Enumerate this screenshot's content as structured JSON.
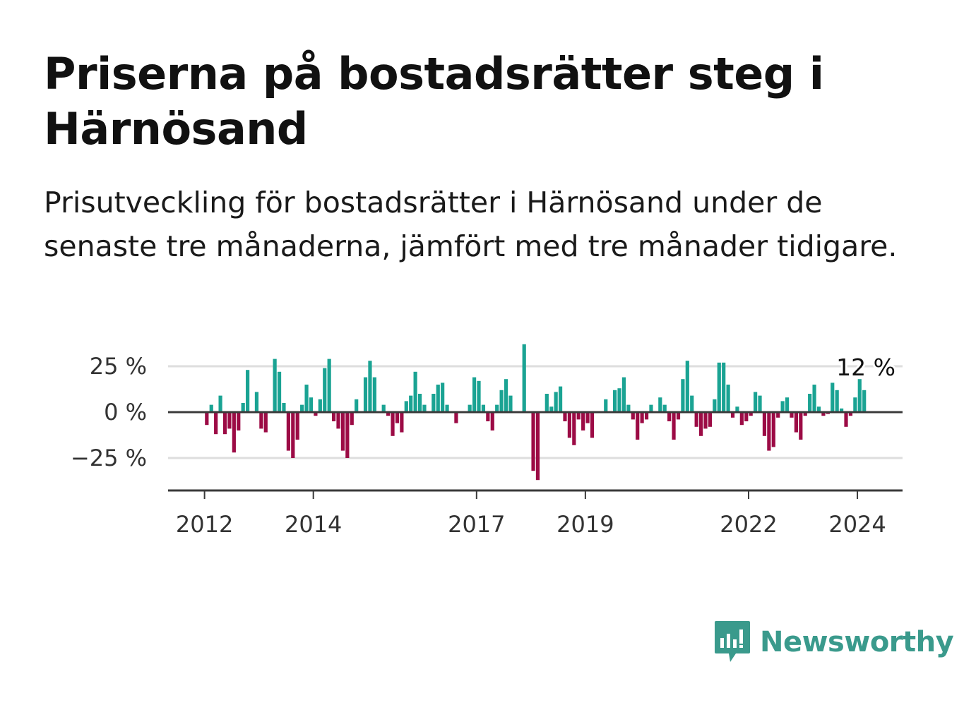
{
  "title": "Priserna på bostadsrätter steg i Härnösand",
  "subtitle": "Prisutveckling för bostadsrätter i Härnösand under de senaste tre månaderna, jämfört med tre månader tidigare.",
  "brand": {
    "name": "Newsworthy",
    "icon": "newsworthy-bar-chart-logo-icon"
  },
  "colors": {
    "positive": "#1aa393",
    "negative": "#9c0b45",
    "axis": "#3a3a3a",
    "grid": "#dedede",
    "brand": "#3a9a8c"
  },
  "chart_data": {
    "type": "bar",
    "title": "",
    "xlabel": "",
    "ylabel": "",
    "ylim": [
      -42,
      38
    ],
    "y_ticks": [
      {
        "value": 25,
        "label": "25 %"
      },
      {
        "value": 0,
        "label": "0 %"
      },
      {
        "value": -25,
        "label": "−25 %"
      }
    ],
    "x_ticks": [
      {
        "value": 2012.0,
        "label": "2012"
      },
      {
        "value": 2014.0,
        "label": "2014"
      },
      {
        "value": 2017.0,
        "label": "2017"
      },
      {
        "value": 2019.0,
        "label": "2019"
      },
      {
        "value": 2022.0,
        "label": "2022"
      },
      {
        "value": 2024.0,
        "label": "2024"
      }
    ],
    "x_range": [
      2011.33,
      2024.83
    ],
    "start": "2012-01",
    "frequency": "monthly",
    "grid": "horizontal",
    "last_value_label": "12 %",
    "values": [
      -7,
      4,
      -12,
      9,
      -12,
      -9,
      -22,
      -10,
      5,
      23,
      0,
      11,
      -9,
      -11,
      0,
      29,
      22,
      5,
      -21,
      -25,
      -15,
      4,
      15,
      8,
      -2,
      7,
      24,
      29,
      -5,
      -9,
      -21,
      -25,
      -7,
      7,
      0,
      19,
      28,
      19,
      0,
      4,
      -2,
      -13,
      -6,
      -11,
      6,
      9,
      22,
      10,
      4,
      0,
      10,
      15,
      16,
      4,
      0,
      -6,
      0,
      0,
      4,
      19,
      17,
      4,
      -5,
      -10,
      4,
      12,
      18,
      9,
      0,
      0,
      37,
      0,
      -32,
      -37,
      0,
      10,
      3,
      11,
      14,
      -5,
      -14,
      -18,
      -4,
      -10,
      -6,
      -14,
      0,
      0,
      7,
      0,
      12,
      13,
      19,
      4,
      -4,
      -15,
      -6,
      -4,
      4,
      0,
      8,
      4,
      -5,
      -15,
      -4,
      18,
      28,
      9,
      -8,
      -13,
      -9,
      -8,
      7,
      27,
      27,
      15,
      -3,
      3,
      -7,
      -5,
      -2,
      11,
      9,
      -13,
      -21,
      -19,
      -3,
      6,
      8,
      -3,
      -11,
      -15,
      -2,
      10,
      15,
      3,
      -2,
      -1,
      16,
      12,
      2,
      -8,
      -2,
      8,
      18,
      12
    ]
  }
}
